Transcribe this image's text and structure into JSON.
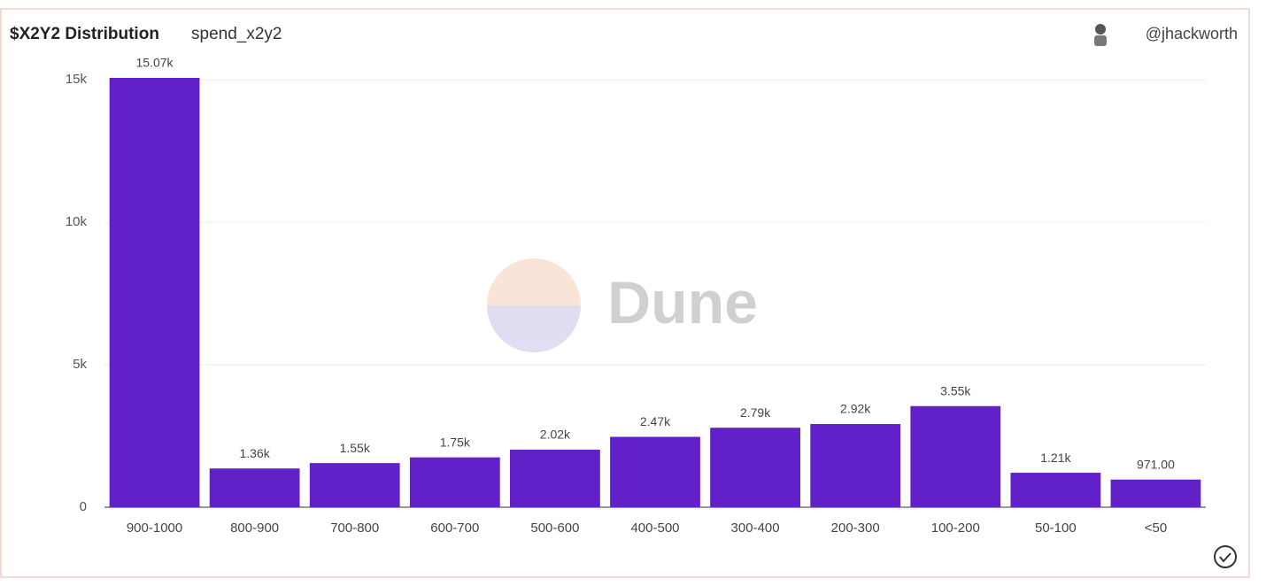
{
  "chart_data": {
    "type": "bar",
    "title": "$X2Y2 Distribution",
    "subtitle": "spend_x2y2",
    "author": "@jhackworth",
    "watermark": "Dune",
    "categories": [
      "900-1000",
      "800-900",
      "700-800",
      "600-700",
      "500-600",
      "400-500",
      "300-400",
      "200-300",
      "100-200",
      "50-100",
      "<50"
    ],
    "values": [
      15070,
      1360,
      1550,
      1750,
      2020,
      2470,
      2790,
      2920,
      3550,
      1210,
      971
    ],
    "value_labels": [
      "15.07k",
      "1.36k",
      "1.55k",
      "1.75k",
      "2.02k",
      "2.47k",
      "2.79k",
      "2.92k",
      "3.55k",
      "1.21k",
      "971.00"
    ],
    "color": "#6221c8",
    "ylim": [
      0,
      15070
    ],
    "yticks": [
      0,
      {
        "value": 5000,
        "label": "5k"
      },
      {
        "value": 10000,
        "label": "10k"
      },
      {
        "value": 15000,
        "label": "15k"
      }
    ],
    "grid": true
  }
}
